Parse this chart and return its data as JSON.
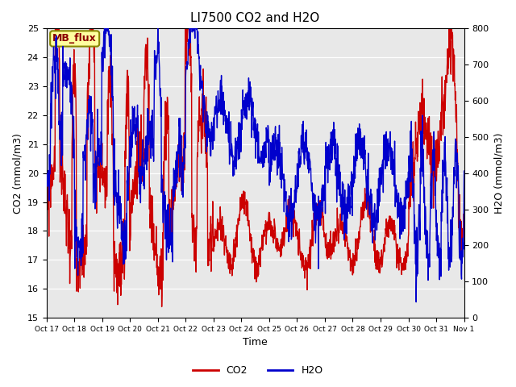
{
  "title": "LI7500 CO2 and H2O",
  "xlabel": "Time",
  "ylabel_left": "CO2 (mmol/m3)",
  "ylabel_right": "H2O (mmol/m3)",
  "ylim_left": [
    15.0,
    25.0
  ],
  "ylim_right": [
    0,
    800
  ],
  "yticks_left": [
    15.0,
    16.0,
    17.0,
    18.0,
    19.0,
    20.0,
    21.0,
    22.0,
    23.0,
    24.0,
    25.0
  ],
  "yticks_right": [
    0,
    100,
    200,
    300,
    400,
    500,
    600,
    700,
    800
  ],
  "xtick_labels": [
    "Oct 17",
    "Oct 18",
    "Oct 19",
    "Oct 20",
    "Oct 21",
    "Oct 22",
    "Oct 23",
    "Oct 24",
    "Oct 25",
    "Oct 26",
    "Oct 27",
    "Oct 28",
    "Oct 29",
    "Oct 30",
    "Oct 31",
    "Nov 1"
  ],
  "annotation_text": "MB_flux",
  "bg_color": "#e8e8e8",
  "co2_color": "#cc0000",
  "h2o_color": "#0000cc",
  "legend_co2": "CO2",
  "legend_h2o": "H2O",
  "title_fontsize": 11,
  "axis_label_fontsize": 9,
  "tick_fontsize": 8,
  "annotation_fontsize": 9,
  "linewidth": 1.0
}
